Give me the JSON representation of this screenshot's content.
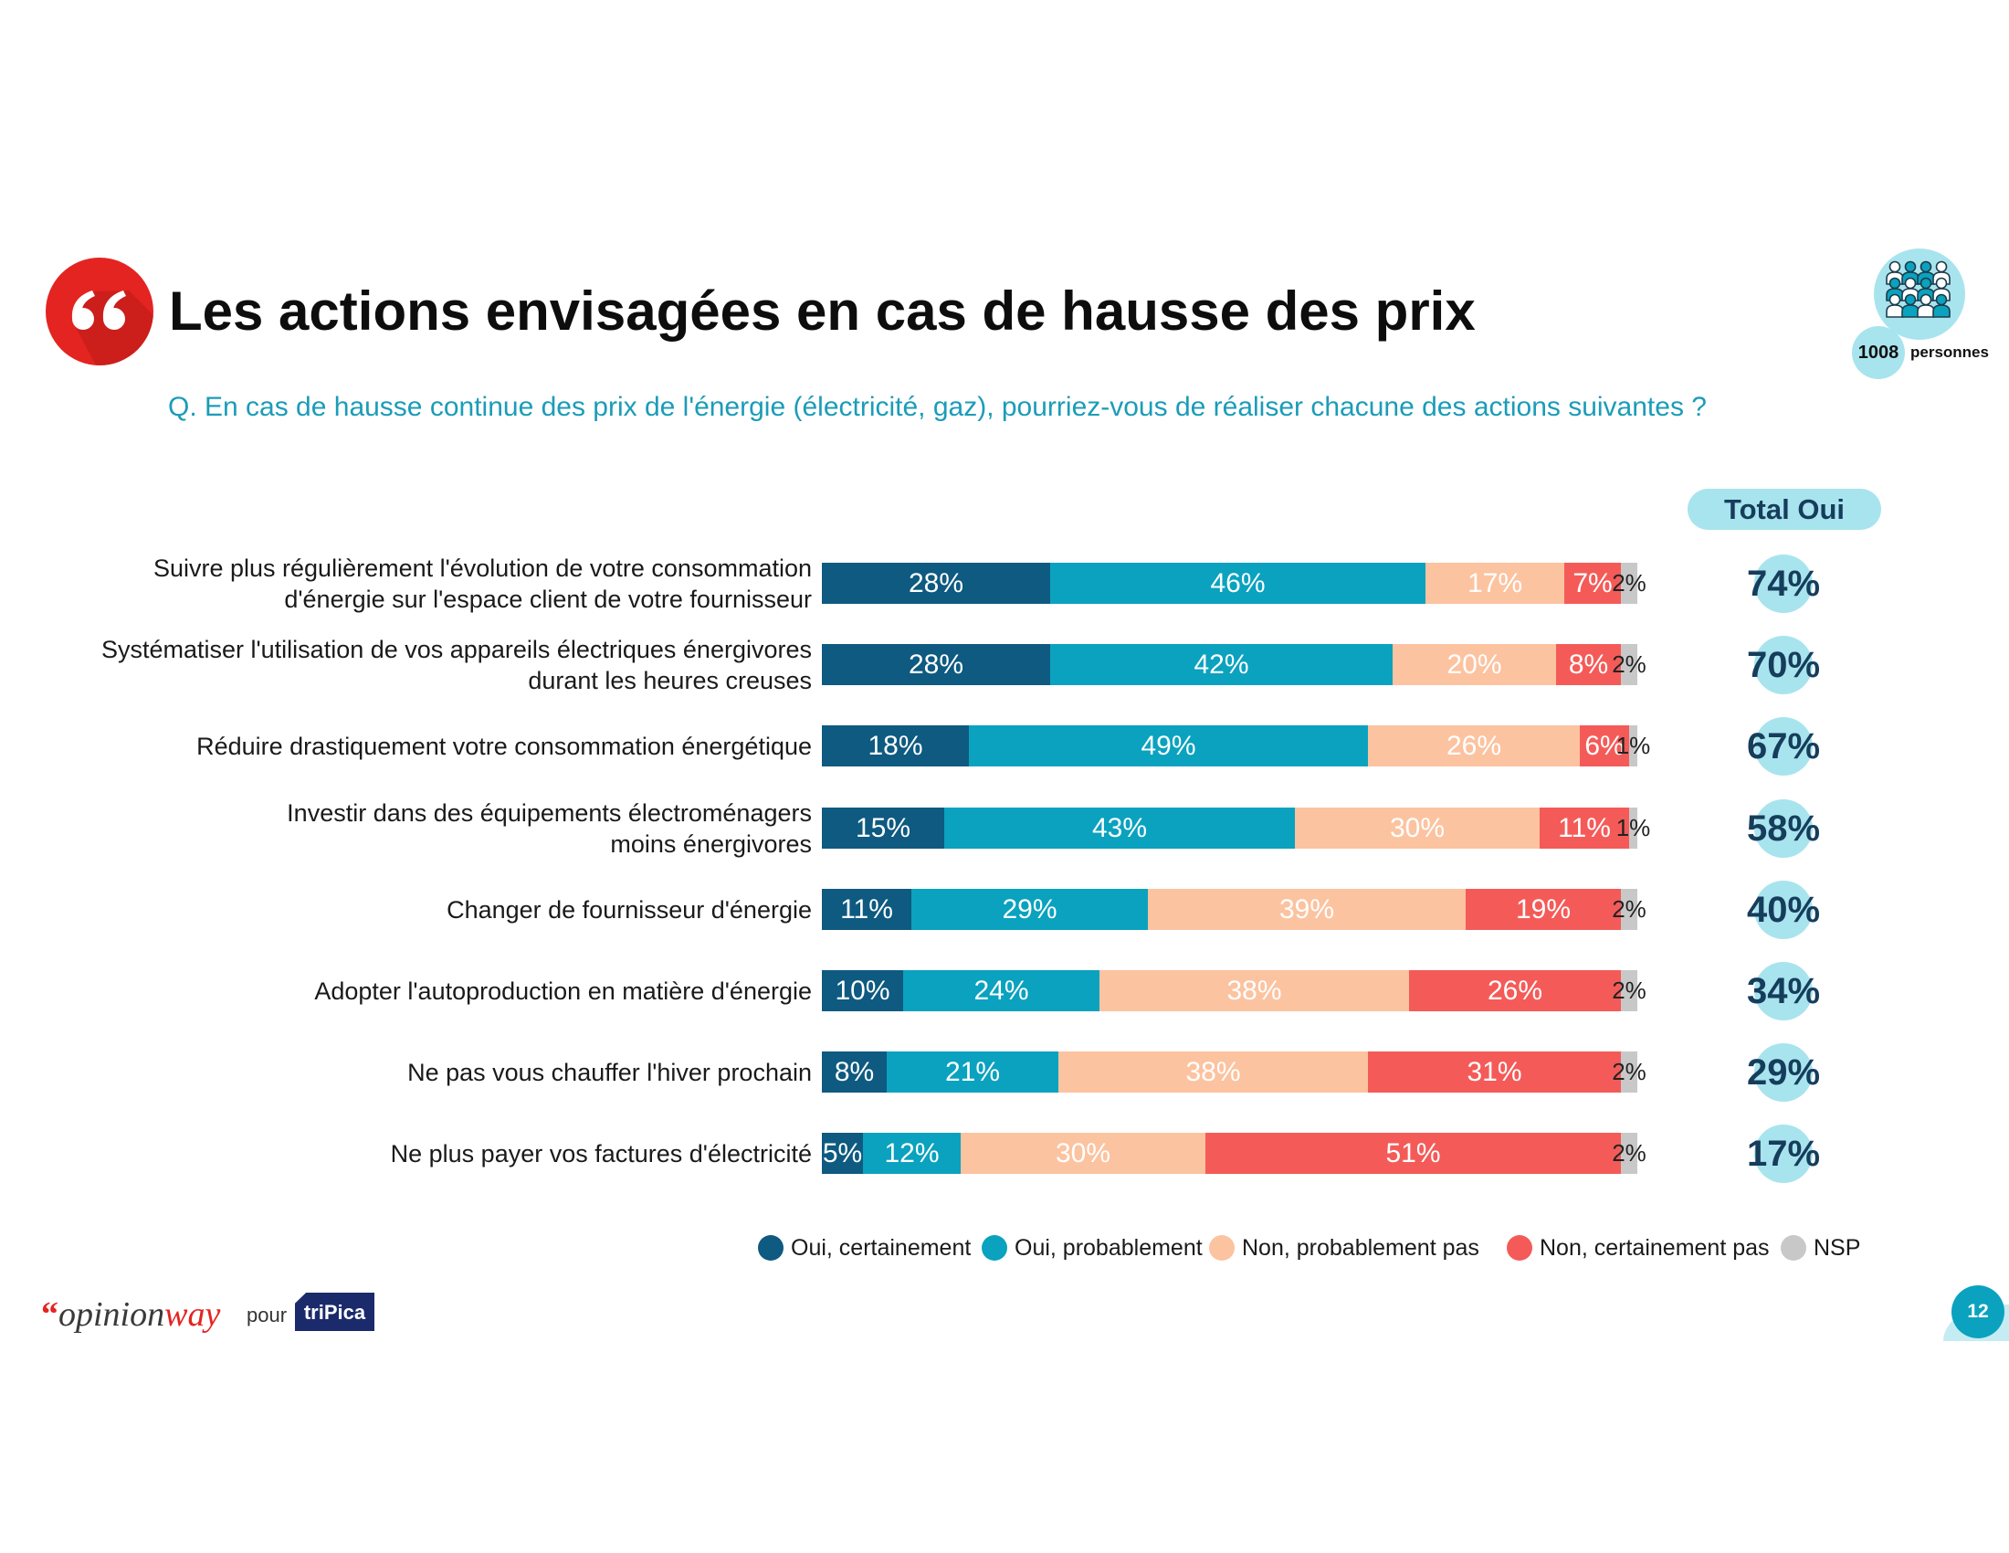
{
  "chart_data": {
    "type": "bar",
    "orientation": "horizontal",
    "stacked": true,
    "title": "Les actions envisagées en cas de hausse des prix",
    "subtitle": "Q. En cas de hausse continue des prix de l'énergie (électricité, gaz), pourriez-vous de réaliser chacune des actions suivantes ?",
    "value_suffix": "%",
    "xlim": [
      0,
      100
    ],
    "legend_position": "bottom",
    "categories": [
      "Suivre plus régulièrement l'évolution de votre consommation\nd'énergie sur l'espace client de votre fournisseur",
      "Systématiser l'utilisation de vos appareils électriques énergivores\ndurant les heures creuses",
      "Réduire drastiquement votre consommation énergétique",
      "Investir dans des équipements électroménagers\nmoins énergivores",
      "Changer de fournisseur d'énergie",
      "Adopter l'autoproduction en matière d'énergie",
      "Ne pas vous chauffer l'hiver prochain",
      "Ne plus payer vos factures d'électricité"
    ],
    "series": [
      {
        "name": "Oui, certainement",
        "color": "#0e5a80",
        "label_color": "#ffffff",
        "values": [
          28,
          28,
          18,
          15,
          11,
          10,
          8,
          5
        ]
      },
      {
        "name": "Oui, probablement",
        "color": "#0aa2bf",
        "label_color": "#ffffff",
        "values": [
          46,
          42,
          49,
          43,
          29,
          24,
          21,
          12
        ]
      },
      {
        "name": "Non, probablement pas",
        "color": "#fcc3a0",
        "label_color": "#ffffff",
        "values": [
          17,
          20,
          26,
          30,
          39,
          38,
          38,
          30
        ]
      },
      {
        "name": "Non, certainement pas",
        "color": "#f45b58",
        "label_color": "#ffffff",
        "values": [
          7,
          8,
          6,
          11,
          19,
          26,
          31,
          51
        ]
      },
      {
        "name": "NSP",
        "color": "#c8c8c8",
        "label_color": "#222222",
        "values": [
          2,
          2,
          1,
          1,
          2,
          2,
          2,
          2
        ]
      }
    ],
    "total": {
      "label": "Total Oui",
      "values": [
        74,
        70,
        67,
        58,
        40,
        34,
        29,
        17
      ]
    }
  },
  "sample": {
    "count": "1008",
    "unit": "personnes"
  },
  "footer": {
    "brand": {
      "mark": "“",
      "part1": "opinion",
      "part2": "way"
    },
    "connector": "pour",
    "client": "triPica"
  },
  "page_number": "12",
  "colors": {
    "accent_red": "#e42421",
    "teal": "#0aa2bf",
    "pale_blue": "#a8e4ee",
    "navy": "#163d5c"
  }
}
